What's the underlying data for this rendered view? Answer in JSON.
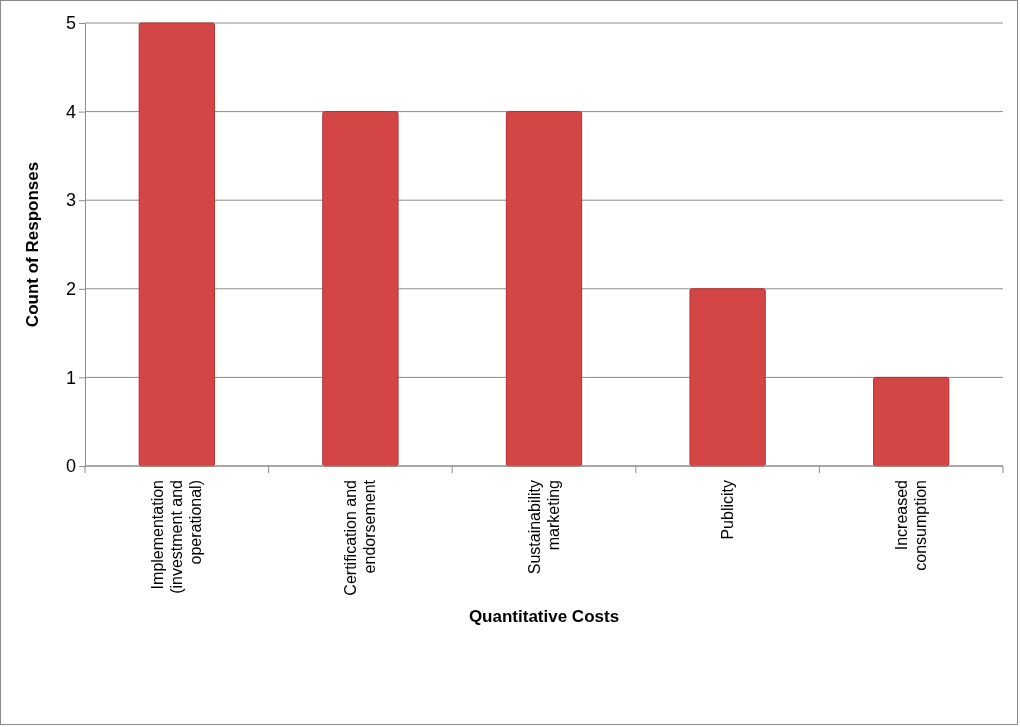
{
  "chart_data": {
    "type": "bar",
    "xlabel": "Quantitative Costs",
    "ylabel": "Count of Responses",
    "categories": [
      "Implementation (investment and operational)",
      "Certification and endorsement",
      "Sustainability marketing",
      "Publicity",
      "Increased consumption"
    ],
    "values": [
      5,
      4,
      4,
      2,
      1
    ],
    "color": "#d44545",
    "ylim": [
      0,
      5
    ],
    "yticks": [
      0,
      1,
      2,
      3,
      4,
      5
    ],
    "grid": "y"
  }
}
